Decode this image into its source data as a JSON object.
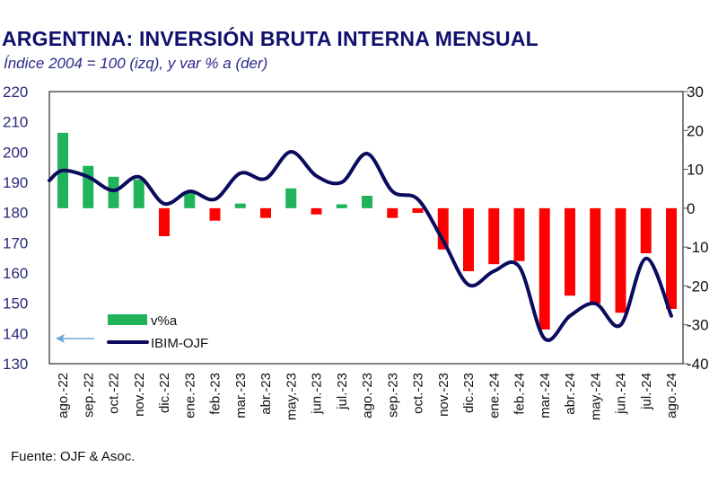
{
  "chart_data": {
    "type": "bar+line",
    "title": "ARGENTINA: INVERSIÓN BRUTA INTERNA MENSUAL",
    "subtitle": "Índice 2004 = 100 (izq), y var % a (der)",
    "source": "Fuente: OJF & Asoc.",
    "categories": [
      "ago.-22",
      "sep.-22",
      "oct.-22",
      "nov.-22",
      "dic.-22",
      "ene.-23",
      "feb.-23",
      "mar.-23",
      "abr.-23",
      "may.-23",
      "jun.-23",
      "jul.-23",
      "ago.-23",
      "sep.-23",
      "oct.-23",
      "nov.-23",
      "dic.-23",
      "ene.-24",
      "feb.-24",
      "mar.-24",
      "abr.-24",
      "may.-24",
      "jun.-24",
      "jul.-24",
      "ago.-24"
    ],
    "left_axis": {
      "min": 130,
      "max": 220,
      "ticks": [
        "130",
        "140",
        "150",
        "160",
        "170",
        "180",
        "190",
        "200",
        "210",
        "220"
      ]
    },
    "right_axis": {
      "min": -40,
      "max": 30,
      "ticks": [
        "-40",
        "-30",
        "-20",
        "-10",
        "0",
        "10",
        "20",
        "30"
      ]
    },
    "series": [
      {
        "name": "v%a",
        "type": "bar",
        "axis": "right",
        "color_positive": "#1fb35a",
        "color_negative": "#ff0000",
        "values": [
          19.4,
          10.9,
          8.1,
          7.4,
          -7.2,
          3.9,
          -3.2,
          1.2,
          -2.5,
          5.1,
          -1.6,
          1.0,
          3.2,
          -2.5,
          -1.2,
          -10.6,
          -16.2,
          -14.4,
          -13.6,
          -31.2,
          -22.5,
          -24.5,
          -26.9,
          -11.6,
          -25.9
        ]
      },
      {
        "name": "IBIM-OJF",
        "type": "line",
        "axis": "left",
        "color": "#0b0b5e",
        "values": [
          193.9,
          191.8,
          187.3,
          191.8,
          182.9,
          187.0,
          184.4,
          193.0,
          191.2,
          200.1,
          192.1,
          190.0,
          199.5,
          187.0,
          184.4,
          170.7,
          156.1,
          160.6,
          162.1,
          138.3,
          145.8,
          149.9,
          142.8,
          164.8,
          145.8
        ]
      }
    ],
    "legend": {
      "placement": "bottom-left",
      "items": [
        "v%a",
        "IBIM-OJF"
      ],
      "arrow_color": "#6fa8dc"
    },
    "grid": false
  }
}
